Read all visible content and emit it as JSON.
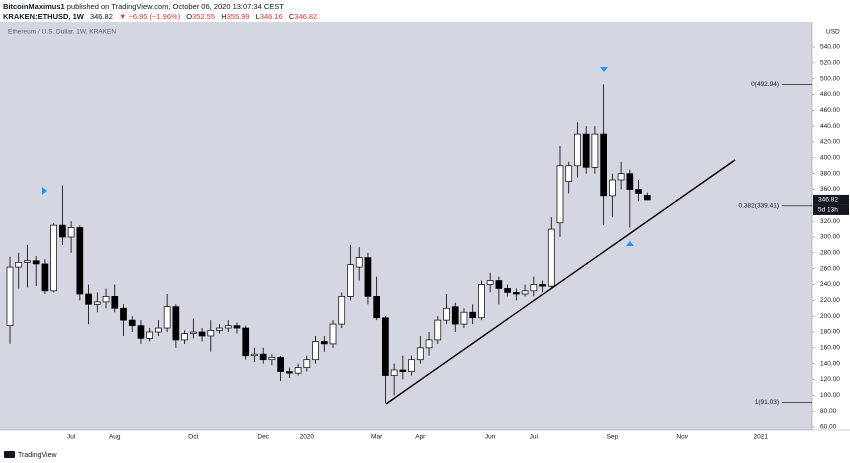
{
  "header": {
    "author": "BitcoinMaximus1",
    "published": "published on TradingView.com, October 06, 2020 13:07:34 CEST",
    "symbol": "KRAKEN:ETHUSD, 1W",
    "change": "▼ −6.95 (−1.96%)",
    "ohlc_labels": [
      "O",
      "H",
      "L",
      "C"
    ]
  },
  "footer": {
    "logo": "TradingView"
  },
  "chart_data": {
    "type": "candlestick",
    "title": "Ethereum / U.S. Dollar, 1W, KRAKEN",
    "currency": "USD",
    "countdown": "5d 13h",
    "up_color": "#ffffff",
    "down_color": "#000000",
    "grid": false,
    "categories": [
      null,
      null,
      null,
      null,
      null,
      null,
      null,
      "Jul",
      null,
      null,
      null,
      null,
      "Aug",
      null,
      null,
      null,
      null,
      null,
      null,
      null,
      null,
      "Oct",
      null,
      null,
      null,
      null,
      null,
      null,
      null,
      "Dec",
      null,
      null,
      null,
      null,
      "2020",
      null,
      null,
      null,
      null,
      null,
      null,
      null,
      "Mar",
      null,
      null,
      null,
      null,
      "Apr",
      null,
      null,
      null,
      null,
      null,
      null,
      null,
      "Jun",
      null,
      null,
      null,
      null,
      "Jul",
      null,
      null,
      null,
      null,
      null,
      null,
      null,
      null,
      "Sep",
      null,
      null,
      null,
      null,
      null,
      null,
      null,
      "Nov",
      null,
      null,
      null,
      null,
      null,
      null,
      null,
      null,
      "2021",
      null
    ],
    "open": [
      188,
      262,
      268,
      270,
      266,
      232,
      315,
      300,
      312,
      228,
      215,
      218,
      225,
      210,
      195,
      188,
      172,
      180,
      185,
      212,
      170,
      178,
      180,
      175,
      182,
      185,
      188,
      185,
      150,
      152,
      145,
      148,
      130,
      128,
      135,
      145,
      168,
      165,
      190,
      225,
      262,
      274,
      225,
      198,
      125,
      132,
      130,
      145,
      160,
      170,
      195,
      212,
      190,
      205,
      198,
      240,
      245,
      235,
      230,
      228,
      232,
      240,
      238,
      318,
      370,
      390,
      430,
      388,
      430,
      352,
      372,
      380,
      360,
      352.55,
      null,
      null,
      null,
      null,
      null,
      null,
      null,
      null,
      null,
      null,
      null,
      null,
      null,
      null
    ],
    "high": [
      275,
      280,
      290,
      276,
      272,
      318,
      365,
      320,
      315,
      240,
      230,
      235,
      240,
      215,
      200,
      195,
      185,
      195,
      228,
      215,
      182,
      197,
      185,
      195,
      190,
      195,
      192,
      188,
      160,
      160,
      152,
      150,
      135,
      140,
      150,
      175,
      175,
      195,
      230,
      290,
      287,
      280,
      250,
      200,
      140,
      150,
      150,
      175,
      180,
      200,
      228,
      217,
      210,
      215,
      245,
      255,
      250,
      240,
      235,
      240,
      250,
      245,
      325,
      415,
      395,
      445,
      440,
      440,
      492.94,
      380,
      395,
      385,
      372,
      355.99,
      null,
      null,
      null,
      null,
      null,
      null,
      null,
      null,
      null,
      null,
      null,
      null,
      null,
      null
    ],
    "low": [
      165,
      235,
      236,
      238,
      228,
      230,
      290,
      280,
      220,
      190,
      205,
      210,
      205,
      175,
      180,
      165,
      168,
      175,
      180,
      160,
      165,
      172,
      168,
      155,
      178,
      180,
      178,
      145,
      142,
      140,
      138,
      118,
      122,
      125,
      130,
      140,
      155,
      160,
      185,
      220,
      245,
      215,
      195,
      90,
      100,
      120,
      125,
      140,
      150,
      165,
      190,
      180,
      185,
      190,
      195,
      230,
      215,
      225,
      220,
      225,
      225,
      230,
      235,
      300,
      355,
      375,
      380,
      380,
      315,
      325,
      360,
      312,
      345,
      346.16,
      null,
      null,
      null,
      null,
      null,
      null,
      null,
      null,
      null,
      null,
      null,
      null,
      null,
      null
    ],
    "close": [
      262,
      268,
      270,
      266,
      232,
      315,
      300,
      312,
      228,
      215,
      218,
      225,
      210,
      195,
      188,
      172,
      180,
      185,
      212,
      170,
      178,
      180,
      175,
      182,
      185,
      188,
      185,
      150,
      152,
      145,
      148,
      130,
      128,
      135,
      145,
      168,
      165,
      190,
      225,
      265,
      274,
      225,
      198,
      125,
      132,
      130,
      145,
      160,
      170,
      195,
      210,
      190,
      205,
      198,
      240,
      245,
      235,
      230,
      228,
      232,
      240,
      238,
      310,
      390,
      390,
      430,
      388,
      430,
      352,
      372,
      380,
      360,
      355,
      346.82,
      null,
      null,
      null,
      null,
      null,
      null,
      null,
      null,
      null,
      null,
      null,
      null,
      null,
      null
    ],
    "ylim": [
      56.2,
      571.6
    ],
    "yticks": [
      {
        "value": 60,
        "label": "60.00"
      },
      {
        "value": 80,
        "label": "80.00"
      },
      {
        "value": 100,
        "label": "100.00"
      },
      {
        "value": 120,
        "label": "120.00"
      },
      {
        "value": 140,
        "label": "140.00"
      },
      {
        "value": 160,
        "label": "160.00"
      },
      {
        "value": 180,
        "label": "180.00"
      },
      {
        "value": 200,
        "label": "200.00"
      },
      {
        "value": 220,
        "label": "220.00"
      },
      {
        "value": 240,
        "label": "240.00"
      },
      {
        "value": 260,
        "label": "260.00"
      },
      {
        "value": 280,
        "label": "280.00"
      },
      {
        "value": 300,
        "label": "300.00"
      },
      {
        "value": 320,
        "label": "320.00"
      },
      {
        "value": 340,
        "label": "340.00"
      },
      {
        "value": 360,
        "label": "360.00"
      },
      {
        "value": 380,
        "label": "380.00"
      },
      {
        "value": 400,
        "label": "400.00"
      },
      {
        "value": 420,
        "label": "420.00"
      },
      {
        "value": 440,
        "label": "440.00"
      },
      {
        "value": 460,
        "label": "460.00"
      },
      {
        "value": 480,
        "label": "480.00"
      },
      {
        "value": 500,
        "label": "500.00"
      },
      {
        "value": 520,
        "label": "520.00"
      },
      {
        "value": 540,
        "label": "540.00"
      }
    ],
    "levels": [
      {
        "value": 492.94,
        "label": "0(492.94)"
      },
      {
        "value": 339.41,
        "label": "0.382(339.41)"
      },
      {
        "value": 91.03,
        "label": "1(91.03)"
      }
    ]
  }
}
